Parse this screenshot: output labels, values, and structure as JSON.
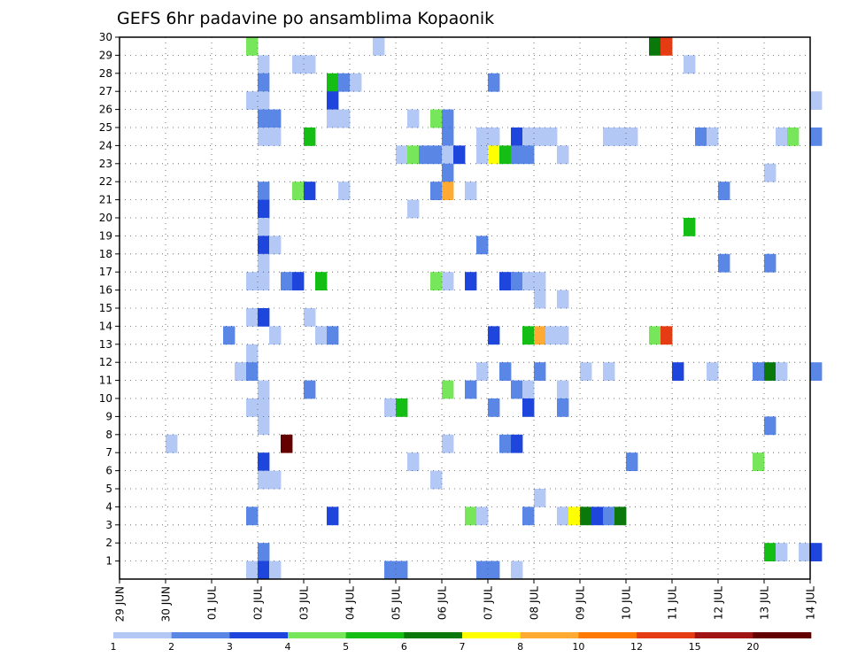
{
  "chart_data": {
    "type": "heatmap",
    "title": "GEFS 6hr padavine po ansamblima Kopaonik",
    "xlabel": "",
    "ylabel": "",
    "y_ticks": [
      "1",
      "2",
      "3",
      "4",
      "5",
      "6",
      "7",
      "8",
      "9",
      "10",
      "11",
      "12",
      "13",
      "14",
      "15",
      "16",
      "17",
      "18",
      "19",
      "20",
      "21",
      "22",
      "23",
      "24",
      "25",
      "26",
      "27",
      "28",
      "29",
      "30"
    ],
    "ylim": [
      0,
      30
    ],
    "x_ticks": [
      "29 JUN",
      "30 JUN",
      "01 JUL",
      "02 JUL",
      "03 JUL",
      "04 JUL",
      "05 JUL",
      "06 JUL",
      "07 JUL",
      "08 JUL",
      "09 JUL",
      "10 JUL",
      "11 JUL",
      "12 JUL",
      "13 JUL",
      "14 JUL"
    ],
    "x_range_days": [
      0,
      15
    ],
    "steps_per_day": 4,
    "grid": true,
    "legend_position": "bottom",
    "colorbar": {
      "labels": [
        "1",
        "2",
        "3",
        "4",
        "5",
        "6",
        "7",
        "8",
        "10",
        "12",
        "15",
        "20"
      ],
      "colors": [
        "#b4c8f5",
        "#5a87e6",
        "#1e46dc",
        "#78e65a",
        "#14be14",
        "#0a780a",
        "#ffff00",
        "#ffaa32",
        "#ff7800",
        "#e63c14",
        "#a01414",
        "#640000"
      ]
    },
    "cells": [
      [
        30,
        11,
        4
      ],
      [
        30,
        22,
        1
      ],
      [
        30,
        46,
        6
      ],
      [
        30,
        47,
        10
      ],
      [
        29,
        12,
        1
      ],
      [
        29,
        15,
        1
      ],
      [
        29,
        16,
        1
      ],
      [
        29,
        49,
        1
      ],
      [
        28,
        12,
        2
      ],
      [
        28,
        18,
        5
      ],
      [
        28,
        19,
        2
      ],
      [
        28,
        20,
        1
      ],
      [
        28,
        32,
        2
      ],
      [
        27,
        11,
        1
      ],
      [
        27,
        12,
        1
      ],
      [
        27,
        18,
        3
      ],
      [
        27,
        60,
        1
      ],
      [
        26,
        12,
        2
      ],
      [
        26,
        13,
        2
      ],
      [
        26,
        18,
        1
      ],
      [
        26,
        19,
        1
      ],
      [
        26,
        25,
        1
      ],
      [
        26,
        27,
        4
      ],
      [
        26,
        28,
        2
      ],
      [
        25,
        12,
        1
      ],
      [
        25,
        13,
        1
      ],
      [
        25,
        16,
        5
      ],
      [
        25,
        28,
        2
      ],
      [
        25,
        31,
        1
      ],
      [
        25,
        32,
        1
      ],
      [
        25,
        34,
        3
      ],
      [
        25,
        35,
        1
      ],
      [
        25,
        36,
        1
      ],
      [
        25,
        37,
        1
      ],
      [
        25,
        42,
        1
      ],
      [
        25,
        43,
        1
      ],
      [
        25,
        44,
        1
      ],
      [
        25,
        50,
        2
      ],
      [
        25,
        51,
        1
      ],
      [
        25,
        57,
        1
      ],
      [
        25,
        58,
        4
      ],
      [
        25,
        60,
        2
      ],
      [
        24,
        24,
        1
      ],
      [
        24,
        25,
        4
      ],
      [
        24,
        26,
        2
      ],
      [
        24,
        27,
        2
      ],
      [
        24,
        28,
        1
      ],
      [
        24,
        29,
        3
      ],
      [
        24,
        31,
        1
      ],
      [
        24,
        32,
        7
      ],
      [
        24,
        33,
        5
      ],
      [
        24,
        34,
        2
      ],
      [
        24,
        35,
        2
      ],
      [
        24,
        38,
        1
      ],
      [
        23,
        28,
        2
      ],
      [
        23,
        56,
        1
      ],
      [
        22,
        12,
        2
      ],
      [
        22,
        15,
        4
      ],
      [
        22,
        16,
        3
      ],
      [
        22,
        19,
        1
      ],
      [
        22,
        27,
        2
      ],
      [
        22,
        28,
        8
      ],
      [
        22,
        30,
        1
      ],
      [
        22,
        52,
        2
      ],
      [
        21,
        12,
        3
      ],
      [
        21,
        25,
        1
      ],
      [
        20,
        12,
        1
      ],
      [
        20,
        49,
        5
      ],
      [
        19,
        12,
        3
      ],
      [
        19,
        13,
        1
      ],
      [
        19,
        31,
        2
      ],
      [
        18,
        12,
        1
      ],
      [
        18,
        52,
        2
      ],
      [
        18,
        56,
        2
      ],
      [
        17,
        11,
        1
      ],
      [
        17,
        12,
        1
      ],
      [
        17,
        14,
        2
      ],
      [
        17,
        15,
        3
      ],
      [
        17,
        17,
        5
      ],
      [
        17,
        27,
        4
      ],
      [
        17,
        28,
        1
      ],
      [
        17,
        30,
        3
      ],
      [
        17,
        33,
        3
      ],
      [
        17,
        34,
        2
      ],
      [
        17,
        35,
        1
      ],
      [
        17,
        36,
        1
      ],
      [
        16,
        36,
        1
      ],
      [
        16,
        38,
        1
      ],
      [
        15,
        11,
        1
      ],
      [
        15,
        12,
        3
      ],
      [
        15,
        16,
        1
      ],
      [
        14,
        9,
        2
      ],
      [
        14,
        13,
        1
      ],
      [
        14,
        17,
        1
      ],
      [
        14,
        18,
        2
      ],
      [
        14,
        32,
        3
      ],
      [
        14,
        35,
        5
      ],
      [
        14,
        36,
        8
      ],
      [
        14,
        37,
        1
      ],
      [
        14,
        38,
        1
      ],
      [
        14,
        46,
        4
      ],
      [
        14,
        47,
        10
      ],
      [
        13,
        11,
        1
      ],
      [
        12,
        10,
        1
      ],
      [
        12,
        11,
        2
      ],
      [
        12,
        31,
        1
      ],
      [
        12,
        33,
        2
      ],
      [
        12,
        36,
        2
      ],
      [
        12,
        40,
        1
      ],
      [
        12,
        42,
        1
      ],
      [
        12,
        48,
        3
      ],
      [
        12,
        51,
        1
      ],
      [
        12,
        55,
        2
      ],
      [
        12,
        56,
        6
      ],
      [
        12,
        57,
        1
      ],
      [
        12,
        60,
        2
      ],
      [
        11,
        12,
        1
      ],
      [
        11,
        16,
        2
      ],
      [
        11,
        28,
        4
      ],
      [
        11,
        30,
        2
      ],
      [
        11,
        34,
        2
      ],
      [
        11,
        35,
        1
      ],
      [
        11,
        38,
        1
      ],
      [
        10,
        11,
        1
      ],
      [
        10,
        12,
        1
      ],
      [
        10,
        23,
        1
      ],
      [
        10,
        24,
        5
      ],
      [
        10,
        32,
        2
      ],
      [
        10,
        35,
        3
      ],
      [
        10,
        38,
        2
      ],
      [
        9,
        12,
        1
      ],
      [
        9,
        56,
        2
      ],
      [
        8,
        4,
        1
      ],
      [
        8,
        14,
        12
      ],
      [
        8,
        28,
        1
      ],
      [
        8,
        33,
        2
      ],
      [
        8,
        34,
        3
      ],
      [
        7,
        12,
        3
      ],
      [
        7,
        25,
        1
      ],
      [
        7,
        44,
        2
      ],
      [
        7,
        55,
        4
      ],
      [
        6,
        12,
        1
      ],
      [
        6,
        13,
        1
      ],
      [
        6,
        27,
        1
      ],
      [
        5,
        36,
        1
      ],
      [
        4,
        11,
        2
      ],
      [
        4,
        18,
        3
      ],
      [
        4,
        30,
        4
      ],
      [
        4,
        31,
        1
      ],
      [
        4,
        35,
        2
      ],
      [
        4,
        38,
        1
      ],
      [
        4,
        39,
        7
      ],
      [
        4,
        40,
        6
      ],
      [
        4,
        41,
        3
      ],
      [
        4,
        42,
        2
      ],
      [
        4,
        43,
        6
      ],
      [
        2,
        12,
        2
      ],
      [
        2,
        56,
        5
      ],
      [
        2,
        57,
        1
      ],
      [
        2,
        59,
        1
      ],
      [
        2,
        60,
        3
      ],
      [
        1,
        11,
        1
      ],
      [
        1,
        12,
        3
      ],
      [
        1,
        13,
        1
      ],
      [
        1,
        23,
        2
      ],
      [
        1,
        24,
        2
      ],
      [
        1,
        31,
        2
      ],
      [
        1,
        32,
        2
      ],
      [
        1,
        34,
        1
      ]
    ]
  }
}
